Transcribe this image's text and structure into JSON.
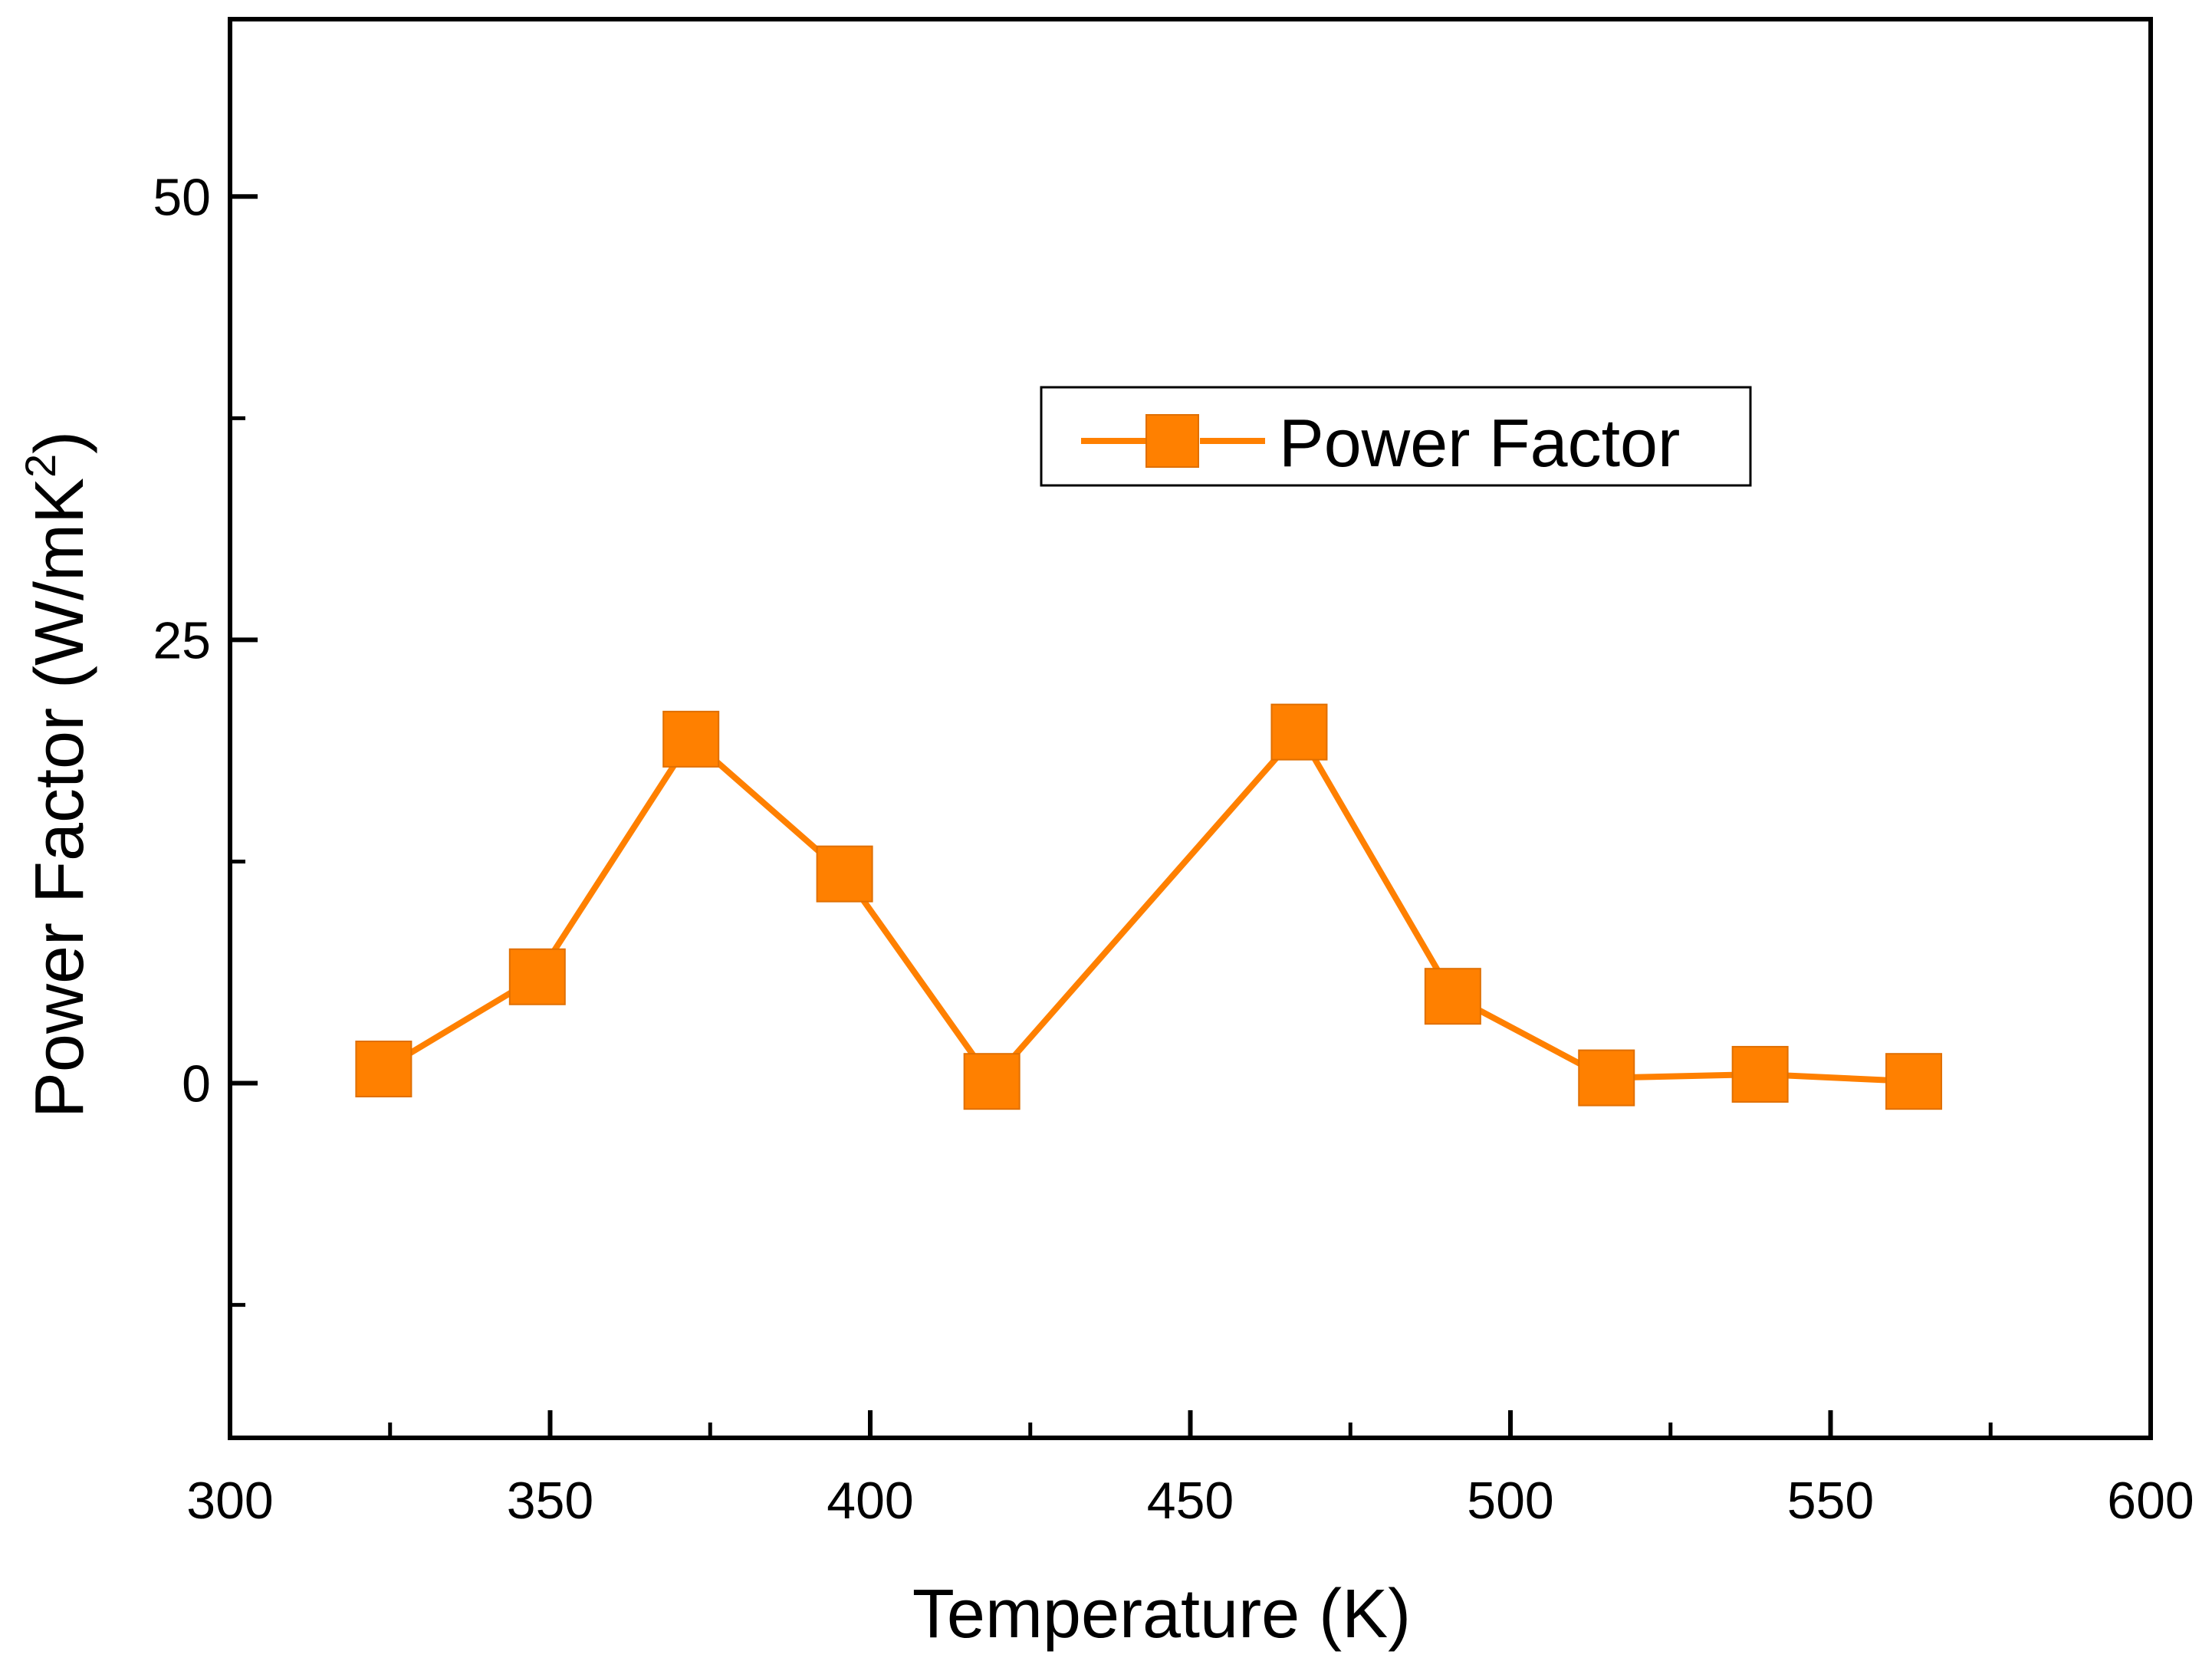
{
  "chart_data": {
    "type": "line",
    "title": "",
    "xlabel": "Temperature (K)",
    "ylabel": {
      "main": "Power Factor (W/mK",
      "superscript": "2",
      "closing": ")"
    },
    "xlim": [
      300,
      600
    ],
    "ylim": [
      -20,
      60
    ],
    "x_ticks": [
      300,
      350,
      400,
      450,
      500,
      550,
      600
    ],
    "x_minor_ticks": [
      325,
      375,
      425,
      475,
      525,
      575
    ],
    "y_ticks": [
      0,
      25,
      50
    ],
    "y_minor_ticks": [
      -12.5,
      12.5,
      37.5
    ],
    "grid": false,
    "legend_position": "upper-right",
    "series": [
      {
        "name": "Power Factor",
        "color": "#ff8000",
        "marker": "square",
        "x": [
          324,
          348,
          372,
          396,
          419,
          467,
          491,
          515,
          539,
          563
        ],
        "y": [
          0.8,
          6.0,
          19.4,
          11.8,
          0.1,
          19.8,
          4.9,
          0.3,
          0.5,
          0.1
        ]
      }
    ]
  }
}
